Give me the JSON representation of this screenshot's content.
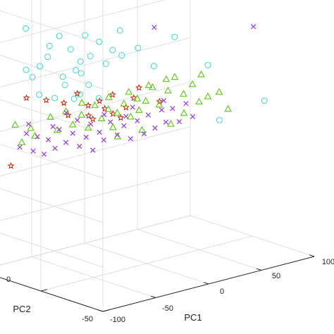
{
  "chart_data": {
    "type": "scatter",
    "projection": "3d",
    "grid": true,
    "xlabel": "PC1",
    "ylabel": "PC2",
    "zlabel": "",
    "x_ticks": [
      "-100",
      "-50",
      "0",
      "50",
      "100"
    ],
    "y_ticks": [
      "-50",
      "0"
    ],
    "series": [
      {
        "marker": "circle",
        "color": "#4fd9d0",
        "points": [
          [
            -58,
            48,
            44
          ],
          [
            -47,
            46,
            26
          ],
          [
            -42,
            44,
            30
          ],
          [
            -38,
            38,
            40
          ],
          [
            -32,
            34,
            34
          ],
          [
            -25,
            32,
            28
          ],
          [
            -18,
            30,
            30
          ],
          [
            -12,
            28,
            36
          ],
          [
            -8,
            26,
            26
          ],
          [
            -4,
            24,
            32
          ],
          [
            -20,
            40,
            22
          ],
          [
            -30,
            42,
            20
          ],
          [
            -50,
            44,
            14
          ],
          [
            -40,
            40,
            12
          ],
          [
            -35,
            36,
            18
          ],
          [
            -28,
            30,
            14
          ],
          [
            -24,
            38,
            10
          ],
          [
            -15,
            34,
            16
          ],
          [
            -45,
            40,
            36
          ],
          [
            -54,
            46,
            22
          ],
          [
            -60,
            46,
            26
          ],
          [
            -16,
            36,
            38
          ],
          [
            -22,
            34,
            22
          ],
          [
            -10,
            30,
            10
          ],
          [
            10,
            30,
            38
          ],
          [
            14,
            32,
            26
          ],
          [
            20,
            24,
            30
          ],
          [
            28,
            18,
            22
          ],
          [
            50,
            20,
            32
          ],
          [
            58,
            0,
            22
          ],
          [
            76,
            6,
            -6
          ],
          [
            88,
            -20,
            6
          ]
        ]
      },
      {
        "marker": "star",
        "color": "#cc2200",
        "points": [
          [
            -62,
            44,
            14
          ],
          [
            -48,
            40,
            12
          ],
          [
            -36,
            36,
            10
          ],
          [
            -28,
            32,
            14
          ],
          [
            -20,
            30,
            8
          ],
          [
            -22,
            28,
            4
          ],
          [
            -14,
            26,
            10
          ],
          [
            -9,
            26,
            6
          ],
          [
            -4,
            24,
            12
          ],
          [
            -32,
            36,
            4
          ],
          [
            -18,
            28,
            2
          ],
          [
            -6,
            22,
            4
          ],
          [
            -1,
            20,
            2
          ],
          [
            4,
            20,
            6
          ],
          [
            9,
            18,
            10
          ],
          [
            14,
            18,
            14
          ],
          [
            24,
            10,
            8
          ],
          [
            -72,
            48,
            -16
          ]
        ]
      },
      {
        "marker": "triangle",
        "color": "#66cc22",
        "points": [
          [
            -68,
            48,
            2
          ],
          [
            -64,
            46,
            -6
          ],
          [
            -58,
            44,
            0
          ],
          [
            -54,
            44,
            -4
          ],
          [
            -44,
            40,
            4
          ],
          [
            -40,
            38,
            -2
          ],
          [
            -34,
            36,
            6
          ],
          [
            -30,
            34,
            0
          ],
          [
            -24,
            32,
            4
          ],
          [
            -20,
            30,
            -2
          ],
          [
            -16,
            28,
            8
          ],
          [
            -12,
            26,
            2
          ],
          [
            -8,
            24,
            6
          ],
          [
            -6,
            22,
            -2
          ],
          [
            -2,
            22,
            4
          ],
          [
            2,
            20,
            8
          ],
          [
            6,
            18,
            2
          ],
          [
            10,
            16,
            10
          ],
          [
            14,
            18,
            4
          ],
          [
            18,
            16,
            8
          ],
          [
            22,
            14,
            14
          ],
          [
            26,
            12,
            6
          ],
          [
            32,
            10,
            12
          ],
          [
            36,
            8,
            18
          ],
          [
            42,
            6,
            10
          ],
          [
            48,
            4,
            14
          ],
          [
            52,
            2,
            6
          ],
          [
            58,
            0,
            8
          ],
          [
            64,
            -4,
            10
          ],
          [
            70,
            -6,
            2
          ],
          [
            -26,
            30,
            10
          ],
          [
            -10,
            22,
            12
          ],
          [
            2,
            16,
            14
          ],
          [
            16,
            12,
            16
          ],
          [
            28,
            8,
            18
          ],
          [
            40,
            4,
            2
          ],
          [
            54,
            2,
            18
          ],
          [
            -4,
            20,
            -6
          ],
          [
            12,
            14,
            -4
          ],
          [
            30,
            6,
            -2
          ]
        ]
      },
      {
        "marker": "cross",
        "color": "#a040e0",
        "points": [
          [
            -66,
            46,
            -8
          ],
          [
            -62,
            44,
            -2
          ],
          [
            -58,
            42,
            -10
          ],
          [
            -54,
            42,
            -4
          ],
          [
            -50,
            40,
            -12
          ],
          [
            -46,
            40,
            -6
          ],
          [
            -42,
            38,
            -10
          ],
          [
            -38,
            38,
            -2
          ],
          [
            -34,
            36,
            -8
          ],
          [
            -30,
            34,
            -4
          ],
          [
            -26,
            32,
            -10
          ],
          [
            -22,
            30,
            -6
          ],
          [
            -18,
            28,
            -12
          ],
          [
            -14,
            26,
            -4
          ],
          [
            -10,
            26,
            -8
          ],
          [
            -6,
            24,
            0
          ],
          [
            -2,
            22,
            -6
          ],
          [
            2,
            20,
            -2
          ],
          [
            6,
            18,
            -8
          ],
          [
            10,
            16,
            0
          ],
          [
            14,
            14,
            -6
          ],
          [
            18,
            14,
            2
          ],
          [
            22,
            12,
            -4
          ],
          [
            26,
            10,
            4
          ],
          [
            30,
            10,
            -2
          ],
          [
            34,
            8,
            4
          ],
          [
            38,
            6,
            -2
          ],
          [
            42,
            4,
            6
          ],
          [
            46,
            2,
            0
          ],
          [
            -60,
            44,
            2
          ],
          [
            -44,
            38,
            0
          ],
          [
            -28,
            32,
            2
          ],
          [
            -12,
            24,
            4
          ],
          [
            8,
            18,
            6
          ],
          [
            28,
            10,
            8
          ],
          [
            26,
            16,
            40
          ],
          [
            94,
            -6,
            36
          ],
          [
            -36,
            34,
            6
          ],
          [
            -20,
            28,
            0
          ],
          [
            4,
            20,
            2
          ]
        ]
      }
    ]
  }
}
